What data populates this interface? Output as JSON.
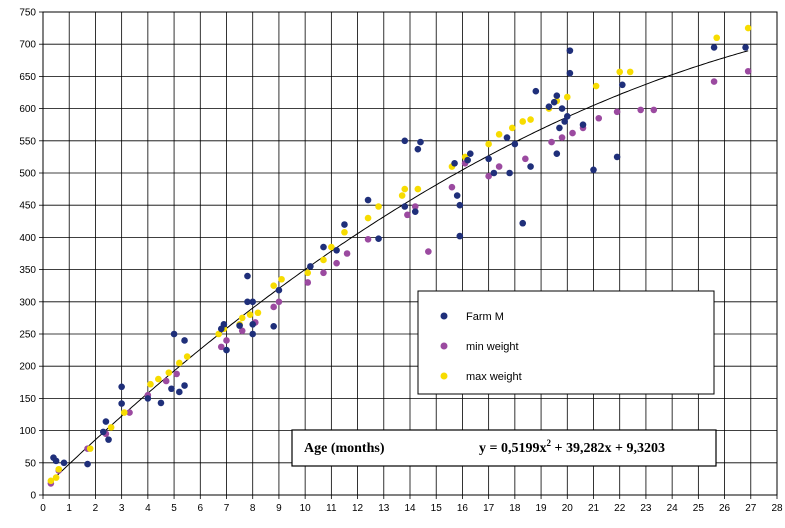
{
  "chart_data": {
    "type": "scatter",
    "xlim": [
      0,
      28
    ],
    "ylim": [
      0,
      750
    ],
    "x_ticks": [
      0,
      1,
      2,
      3,
      4,
      5,
      6,
      7,
      8,
      9,
      10,
      11,
      12,
      13,
      14,
      15,
      16,
      17,
      18,
      19,
      20,
      21,
      22,
      23,
      24,
      25,
      26,
      27,
      28
    ],
    "y_ticks": [
      0,
      50,
      100,
      150,
      200,
      250,
      300,
      350,
      400,
      450,
      500,
      550,
      600,
      650,
      700,
      750
    ],
    "grid": true,
    "legend_position": "middle-right",
    "series": [
      {
        "name": "Farm M",
        "color": "#1f2f7a",
        "points": [
          [
            0.4,
            58
          ],
          [
            0.5,
            53
          ],
          [
            0.8,
            50
          ],
          [
            1.7,
            48
          ],
          [
            2.3,
            98
          ],
          [
            2.4,
            114
          ],
          [
            2.5,
            86
          ],
          [
            3.0,
            142
          ],
          [
            3.0,
            168
          ],
          [
            4.0,
            150
          ],
          [
            4.5,
            143
          ],
          [
            4.9,
            165
          ],
          [
            5.0,
            250
          ],
          [
            5.2,
            160
          ],
          [
            5.4,
            170
          ],
          [
            5.4,
            240
          ],
          [
            6.8,
            258
          ],
          [
            6.9,
            265
          ],
          [
            7.0,
            225
          ],
          [
            7.5,
            263
          ],
          [
            7.8,
            300
          ],
          [
            7.8,
            340
          ],
          [
            8.0,
            250
          ],
          [
            8.0,
            265
          ],
          [
            8.0,
            300
          ],
          [
            8.8,
            262
          ],
          [
            9.0,
            318
          ],
          [
            10.2,
            355
          ],
          [
            10.7,
            385
          ],
          [
            11.2,
            380
          ],
          [
            11.5,
            420
          ],
          [
            12.4,
            458
          ],
          [
            12.8,
            398
          ],
          [
            13.8,
            550
          ],
          [
            13.8,
            448
          ],
          [
            14.2,
            440
          ],
          [
            14.3,
            537
          ],
          [
            14.4,
            548
          ],
          [
            15.7,
            515
          ],
          [
            15.8,
            465
          ],
          [
            15.9,
            450
          ],
          [
            15.9,
            402
          ],
          [
            16.2,
            520
          ],
          [
            16.3,
            530
          ],
          [
            17.0,
            522
          ],
          [
            17.2,
            500
          ],
          [
            17.7,
            555
          ],
          [
            17.8,
            500
          ],
          [
            18.0,
            545
          ],
          [
            18.3,
            422
          ],
          [
            18.6,
            510
          ],
          [
            18.8,
            627
          ],
          [
            19.3,
            603
          ],
          [
            19.5,
            610
          ],
          [
            19.6,
            620
          ],
          [
            19.6,
            530
          ],
          [
            19.7,
            570
          ],
          [
            19.8,
            600
          ],
          [
            19.9,
            580
          ],
          [
            20.0,
            588
          ],
          [
            20.1,
            655
          ],
          [
            20.1,
            690
          ],
          [
            20.6,
            575
          ],
          [
            21.0,
            505
          ],
          [
            21.9,
            525
          ],
          [
            22.1,
            637
          ],
          [
            25.6,
            695
          ],
          [
            26.8,
            695
          ]
        ]
      },
      {
        "name": "min weight",
        "color": "#9b4aa0",
        "points": [
          [
            0.3,
            18
          ],
          [
            0.6,
            38
          ],
          [
            1.7,
            72
          ],
          [
            2.4,
            95
          ],
          [
            3.3,
            128
          ],
          [
            4.0,
            155
          ],
          [
            4.7,
            177
          ],
          [
            5.1,
            188
          ],
          [
            6.8,
            230
          ],
          [
            7.0,
            240
          ],
          [
            7.6,
            255
          ],
          [
            8.1,
            268
          ],
          [
            8.8,
            292
          ],
          [
            9.0,
            300
          ],
          [
            10.1,
            330
          ],
          [
            10.7,
            345
          ],
          [
            11.2,
            360
          ],
          [
            11.6,
            375
          ],
          [
            12.4,
            397
          ],
          [
            13.9,
            435
          ],
          [
            14.2,
            448
          ],
          [
            14.7,
            378
          ],
          [
            15.6,
            478
          ],
          [
            16.1,
            515
          ],
          [
            17.0,
            495
          ],
          [
            17.4,
            510
          ],
          [
            18.4,
            522
          ],
          [
            19.4,
            548
          ],
          [
            19.8,
            555
          ],
          [
            20.2,
            562
          ],
          [
            20.6,
            570
          ],
          [
            21.2,
            585
          ],
          [
            21.9,
            595
          ],
          [
            22.8,
            598
          ],
          [
            23.3,
            598
          ],
          [
            25.6,
            642
          ],
          [
            26.9,
            658
          ]
        ]
      },
      {
        "name": "max weight",
        "color": "#f7dc00",
        "points": [
          [
            0.3,
            22
          ],
          [
            0.5,
            27
          ],
          [
            0.6,
            40
          ],
          [
            1.8,
            72
          ],
          [
            2.6,
            105
          ],
          [
            3.1,
            128
          ],
          [
            4.1,
            172
          ],
          [
            4.4,
            180
          ],
          [
            4.8,
            190
          ],
          [
            5.2,
            205
          ],
          [
            5.5,
            215
          ],
          [
            6.7,
            250
          ],
          [
            6.9,
            258
          ],
          [
            7.5,
            265
          ],
          [
            7.6,
            275
          ],
          [
            7.9,
            280
          ],
          [
            8.2,
            283
          ],
          [
            8.8,
            325
          ],
          [
            9.1,
            335
          ],
          [
            10.1,
            345
          ],
          [
            10.7,
            365
          ],
          [
            11.0,
            385
          ],
          [
            11.5,
            408
          ],
          [
            12.4,
            430
          ],
          [
            12.8,
            448
          ],
          [
            13.7,
            465
          ],
          [
            13.8,
            475
          ],
          [
            14.3,
            475
          ],
          [
            15.6,
            510
          ],
          [
            16.1,
            525
          ],
          [
            17.0,
            545
          ],
          [
            17.4,
            560
          ],
          [
            17.9,
            570
          ],
          [
            18.3,
            580
          ],
          [
            18.6,
            583
          ],
          [
            19.3,
            600
          ],
          [
            19.6,
            612
          ],
          [
            20.0,
            618
          ],
          [
            21.1,
            635
          ],
          [
            22.0,
            657
          ],
          [
            22.4,
            657
          ],
          [
            25.7,
            710
          ],
          [
            26.9,
            725
          ]
        ]
      }
    ],
    "trendline": {
      "label_left": "Age (months)",
      "equation": "y = 0,5199x",
      "exponent": "2",
      "equation_rest": " + 39,282x + 9,3203",
      "color": "#000000"
    }
  }
}
